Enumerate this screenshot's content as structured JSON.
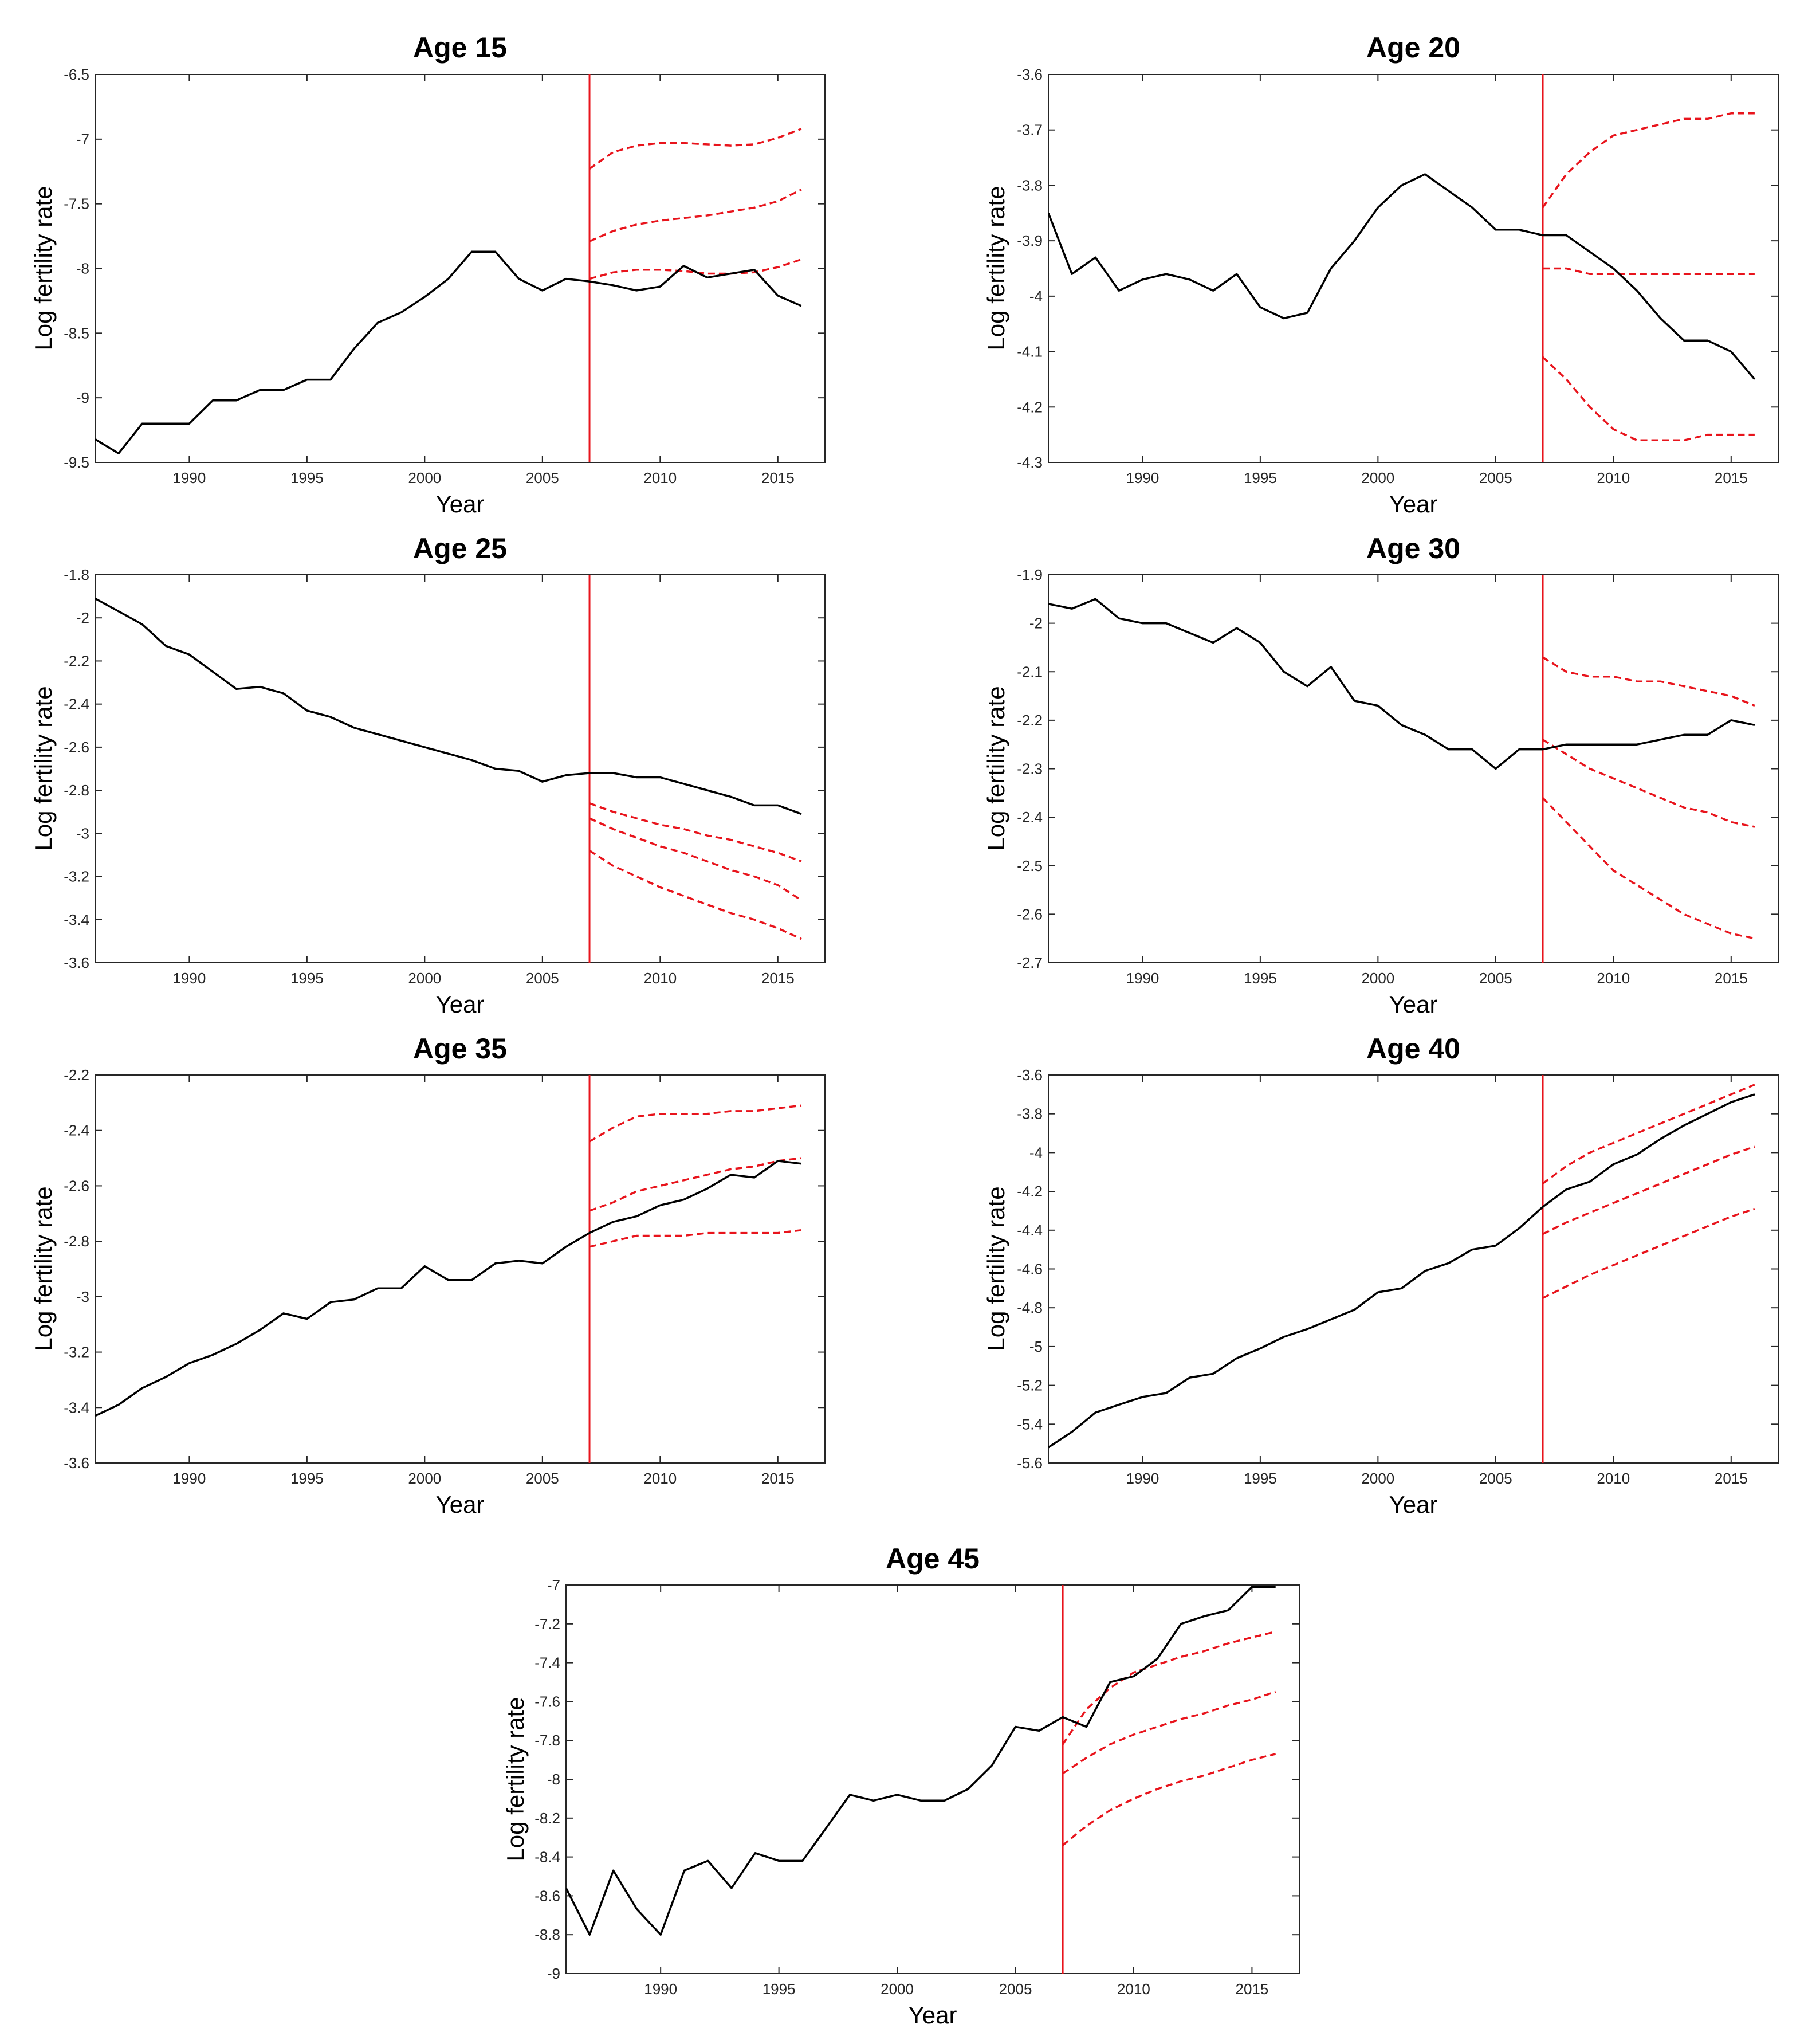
{
  "chart_data": [
    {
      "type": "line",
      "title": "Age 15",
      "xlabel": "Year",
      "ylabel": "Log fertility rate",
      "xlim": [
        1986,
        2017
      ],
      "ylim": [
        -9.5,
        -6.5
      ],
      "xticks": [
        1990,
        1995,
        2000,
        2005,
        2010,
        2015
      ],
      "yticks": [
        -9.5,
        -9,
        -8.5,
        -8,
        -7.5,
        -7,
        -6.5
      ],
      "ytick_labels": [
        "-9.5",
        "-9",
        "-8.5",
        "-8",
        "-7.5",
        "-7",
        "-6.5"
      ],
      "forecast_origin": 2007,
      "observed": {
        "x": [
          1986,
          1987,
          1988,
          1989,
          1990,
          1991,
          1992,
          1993,
          1994,
          1995,
          1996,
          1997,
          1998,
          1999,
          2000,
          2001,
          2002,
          2003,
          2004,
          2005,
          2006,
          2007,
          2008,
          2009,
          2010,
          2011,
          2012,
          2013,
          2014,
          2015,
          2016
        ],
        "y": [
          -9.32,
          -9.43,
          -9.2,
          -9.2,
          -9.2,
          -9.02,
          -9.02,
          -8.94,
          -8.94,
          -8.86,
          -8.86,
          -8.62,
          -8.42,
          -8.34,
          -8.22,
          -8.08,
          -7.87,
          -7.87,
          -8.08,
          -8.17,
          -8.08,
          -8.1,
          -8.13,
          -8.17,
          -8.14,
          -7.98,
          -8.07,
          -8.04,
          -8.01,
          -8.21,
          -8.29
        ]
      },
      "forecast": {
        "x": [
          2007,
          2008,
          2009,
          2010,
          2011,
          2012,
          2013,
          2014,
          2015,
          2016
        ],
        "upper": [
          -7.23,
          -7.1,
          -7.05,
          -7.03,
          -7.03,
          -7.04,
          -7.05,
          -7.04,
          -6.99,
          -6.92
        ],
        "mean": [
          -7.79,
          -7.71,
          -7.66,
          -7.63,
          -7.61,
          -7.59,
          -7.56,
          -7.53,
          -7.48,
          -7.39
        ],
        "lower": [
          -8.08,
          -8.03,
          -8.01,
          -8.01,
          -8.02,
          -8.04,
          -8.04,
          -8.03,
          -7.99,
          -7.93
        ]
      }
    },
    {
      "type": "line",
      "title": "Age 20",
      "xlabel": "Year",
      "ylabel": "Log fertility rate",
      "xlim": [
        1986,
        2017
      ],
      "ylim": [
        -4.3,
        -3.6
      ],
      "xticks": [
        1990,
        1995,
        2000,
        2005,
        2010,
        2015
      ],
      "yticks": [
        -4.3,
        -4.2,
        -4.1,
        -4,
        -3.9,
        -3.8,
        -3.7,
        -3.6
      ],
      "ytick_labels": [
        "-4.3",
        "-4.2",
        "-4.1",
        "-4",
        "-3.9",
        "-3.8",
        "-3.7",
        "-3.6"
      ],
      "forecast_origin": 2007,
      "observed": {
        "x": [
          1986,
          1987,
          1988,
          1989,
          1990,
          1991,
          1992,
          1993,
          1994,
          1995,
          1996,
          1997,
          1998,
          1999,
          2000,
          2001,
          2002,
          2003,
          2004,
          2005,
          2006,
          2007,
          2008,
          2009,
          2010,
          2011,
          2012,
          2013,
          2014,
          2015,
          2016
        ],
        "y": [
          -3.85,
          -3.96,
          -3.93,
          -3.99,
          -3.97,
          -3.96,
          -3.97,
          -3.99,
          -3.96,
          -4.02,
          -4.04,
          -4.03,
          -3.95,
          -3.9,
          -3.84,
          -3.8,
          -3.78,
          -3.81,
          -3.84,
          -3.88,
          -3.88,
          -3.89,
          -3.89,
          -3.92,
          -3.95,
          -3.99,
          -4.04,
          -4.08,
          -4.08,
          -4.1,
          -4.15
        ]
      },
      "forecast": {
        "x": [
          2007,
          2008,
          2009,
          2010,
          2011,
          2012,
          2013,
          2014,
          2015,
          2016
        ],
        "upper": [
          -3.84,
          -3.78,
          -3.74,
          -3.71,
          -3.7,
          -3.69,
          -3.68,
          -3.68,
          -3.67,
          -3.67
        ],
        "mean": [
          -3.95,
          -3.95,
          -3.96,
          -3.96,
          -3.96,
          -3.96,
          -3.96,
          -3.96,
          -3.96,
          -3.96
        ],
        "lower": [
          -4.11,
          -4.15,
          -4.2,
          -4.24,
          -4.26,
          -4.26,
          -4.26,
          -4.25,
          -4.25,
          -4.25
        ]
      }
    },
    {
      "type": "line",
      "title": "Age 25",
      "xlabel": "Year",
      "ylabel": "Log fertility rate",
      "xlim": [
        1986,
        2017
      ],
      "ylim": [
        -3.6,
        -1.8
      ],
      "xticks": [
        1990,
        1995,
        2000,
        2005,
        2010,
        2015
      ],
      "yticks": [
        -3.6,
        -3.4,
        -3.2,
        -3,
        -2.8,
        -2.6,
        -2.4,
        -2.2,
        -2,
        -1.8
      ],
      "ytick_labels": [
        "-3.6",
        "-3.4",
        "-3.2",
        "-3",
        "-2.8",
        "-2.6",
        "-2.4",
        "-2.2",
        "-2",
        "-1.8"
      ],
      "forecast_origin": 2007,
      "observed": {
        "x": [
          1986,
          1987,
          1988,
          1989,
          1990,
          1991,
          1992,
          1993,
          1994,
          1995,
          1996,
          1997,
          1998,
          1999,
          2000,
          2001,
          2002,
          2003,
          2004,
          2005,
          2006,
          2007,
          2008,
          2009,
          2010,
          2011,
          2012,
          2013,
          2014,
          2015,
          2016
        ],
        "y": [
          -1.91,
          -1.97,
          -2.03,
          -2.13,
          -2.17,
          -2.25,
          -2.33,
          -2.32,
          -2.35,
          -2.43,
          -2.46,
          -2.51,
          -2.54,
          -2.57,
          -2.6,
          -2.63,
          -2.66,
          -2.7,
          -2.71,
          -2.76,
          -2.73,
          -2.72,
          -2.72,
          -2.74,
          -2.74,
          -2.77,
          -2.8,
          -2.83,
          -2.87,
          -2.87,
          -2.91
        ]
      },
      "forecast": {
        "x": [
          2007,
          2008,
          2009,
          2010,
          2011,
          2012,
          2013,
          2014,
          2015,
          2016
        ],
        "upper": [
          -2.86,
          -2.9,
          -2.93,
          -2.96,
          -2.98,
          -3.01,
          -3.03,
          -3.06,
          -3.09,
          -3.13
        ],
        "mean": [
          -2.93,
          -2.98,
          -3.02,
          -3.06,
          -3.09,
          -3.13,
          -3.17,
          -3.2,
          -3.24,
          -3.31
        ],
        "lower": [
          -3.08,
          -3.15,
          -3.2,
          -3.25,
          -3.29,
          -3.33,
          -3.37,
          -3.4,
          -3.44,
          -3.49
        ]
      }
    },
    {
      "type": "line",
      "title": "Age 30",
      "xlabel": "Year",
      "ylabel": "Log fertility rate",
      "xlim": [
        1986,
        2017
      ],
      "ylim": [
        -2.7,
        -1.9
      ],
      "xticks": [
        1990,
        1995,
        2000,
        2005,
        2010,
        2015
      ],
      "yticks": [
        -2.7,
        -2.6,
        -2.5,
        -2.4,
        -2.3,
        -2.2,
        -2.1,
        -2,
        -1.9
      ],
      "ytick_labels": [
        "-2.7",
        "-2.6",
        "-2.5",
        "-2.4",
        "-2.3",
        "-2.2",
        "-2.1",
        "-2",
        "-1.9"
      ],
      "forecast_origin": 2007,
      "observed": {
        "x": [
          1986,
          1987,
          1988,
          1989,
          1990,
          1991,
          1992,
          1993,
          1994,
          1995,
          1996,
          1997,
          1998,
          1999,
          2000,
          2001,
          2002,
          2003,
          2004,
          2005,
          2006,
          2007,
          2008,
          2009,
          2010,
          2011,
          2012,
          2013,
          2014,
          2015,
          2016
        ],
        "y": [
          -1.96,
          -1.97,
          -1.95,
          -1.99,
          -2.0,
          -2.0,
          -2.02,
          -2.04,
          -2.01,
          -2.04,
          -2.1,
          -2.13,
          -2.09,
          -2.16,
          -2.17,
          -2.21,
          -2.23,
          -2.26,
          -2.26,
          -2.3,
          -2.26,
          -2.26,
          -2.25,
          -2.25,
          -2.25,
          -2.25,
          -2.24,
          -2.23,
          -2.23,
          -2.2,
          -2.21
        ]
      },
      "forecast": {
        "x": [
          2007,
          2008,
          2009,
          2010,
          2011,
          2012,
          2013,
          2014,
          2015,
          2016
        ],
        "upper": [
          -2.07,
          -2.1,
          -2.11,
          -2.11,
          -2.12,
          -2.12,
          -2.13,
          -2.14,
          -2.15,
          -2.17
        ],
        "mean": [
          -2.24,
          -2.27,
          -2.3,
          -2.32,
          -2.34,
          -2.36,
          -2.38,
          -2.39,
          -2.41,
          -2.42
        ],
        "lower": [
          -2.36,
          -2.41,
          -2.46,
          -2.51,
          -2.54,
          -2.57,
          -2.6,
          -2.62,
          -2.64,
          -2.65
        ]
      }
    },
    {
      "type": "line",
      "title": "Age 35",
      "xlabel": "Year",
      "ylabel": "Log fertility rate",
      "xlim": [
        1986,
        2017
      ],
      "ylim": [
        -3.6,
        -2.2
      ],
      "xticks": [
        1990,
        1995,
        2000,
        2005,
        2010,
        2015
      ],
      "yticks": [
        -3.6,
        -3.4,
        -3.2,
        -3,
        -2.8,
        -2.6,
        -2.4,
        -2.2
      ],
      "ytick_labels": [
        "-3.6",
        "-3.4",
        "-3.2",
        "-3",
        "-2.8",
        "-2.6",
        "-2.4",
        "-2.2"
      ],
      "forecast_origin": 2007,
      "observed": {
        "x": [
          1986,
          1987,
          1988,
          1989,
          1990,
          1991,
          1992,
          1993,
          1994,
          1995,
          1996,
          1997,
          1998,
          1999,
          2000,
          2001,
          2002,
          2003,
          2004,
          2005,
          2006,
          2007,
          2008,
          2009,
          2010,
          2011,
          2012,
          2013,
          2014,
          2015,
          2016
        ],
        "y": [
          -3.43,
          -3.39,
          -3.33,
          -3.29,
          -3.24,
          -3.21,
          -3.17,
          -3.12,
          -3.06,
          -3.08,
          -3.02,
          -3.01,
          -2.97,
          -2.97,
          -2.89,
          -2.94,
          -2.94,
          -2.88,
          -2.87,
          -2.88,
          -2.82,
          -2.77,
          -2.73,
          -2.71,
          -2.67,
          -2.65,
          -2.61,
          -2.56,
          -2.57,
          -2.51,
          -2.52
        ]
      },
      "forecast": {
        "x": [
          2007,
          2008,
          2009,
          2010,
          2011,
          2012,
          2013,
          2014,
          2015,
          2016
        ],
        "upper": [
          -2.44,
          -2.39,
          -2.35,
          -2.34,
          -2.34,
          -2.34,
          -2.33,
          -2.33,
          -2.32,
          -2.31
        ],
        "mean": [
          -2.69,
          -2.66,
          -2.62,
          -2.6,
          -2.58,
          -2.56,
          -2.54,
          -2.53,
          -2.51,
          -2.5
        ],
        "lower": [
          -2.82,
          -2.8,
          -2.78,
          -2.78,
          -2.78,
          -2.77,
          -2.77,
          -2.77,
          -2.77,
          -2.76
        ]
      }
    },
    {
      "type": "line",
      "title": "Age 40",
      "xlabel": "Year",
      "ylabel": "Log fertility rate",
      "xlim": [
        1986,
        2017
      ],
      "ylim": [
        -5.6,
        -3.6
      ],
      "xticks": [
        1990,
        1995,
        2000,
        2005,
        2010,
        2015
      ],
      "yticks": [
        -5.6,
        -5.4,
        -5.2,
        -5,
        -4.8,
        -4.6,
        -4.4,
        -4.2,
        -4,
        -3.8,
        -3.6
      ],
      "ytick_labels": [
        "-5.6",
        "-5.4",
        "-5.2",
        "-5",
        "-4.8",
        "-4.6",
        "-4.4",
        "-4.2",
        "-4",
        "-3.8",
        "-3.6"
      ],
      "forecast_origin": 2007,
      "observed": {
        "x": [
          1986,
          1987,
          1988,
          1989,
          1990,
          1991,
          1992,
          1993,
          1994,
          1995,
          1996,
          1997,
          1998,
          1999,
          2000,
          2001,
          2002,
          2003,
          2004,
          2005,
          2006,
          2007,
          2008,
          2009,
          2010,
          2011,
          2012,
          2013,
          2014,
          2015,
          2016
        ],
        "y": [
          -5.52,
          -5.44,
          -5.34,
          -5.3,
          -5.26,
          -5.24,
          -5.16,
          -5.14,
          -5.06,
          -5.01,
          -4.95,
          -4.91,
          -4.86,
          -4.81,
          -4.72,
          -4.7,
          -4.61,
          -4.57,
          -4.5,
          -4.48,
          -4.39,
          -4.28,
          -4.19,
          -4.15,
          -4.06,
          -4.01,
          -3.93,
          -3.86,
          -3.8,
          -3.74,
          -3.7
        ]
      },
      "forecast": {
        "x": [
          2007,
          2008,
          2009,
          2010,
          2011,
          2012,
          2013,
          2014,
          2015,
          2016
        ],
        "upper": [
          -4.16,
          -4.07,
          -4.0,
          -3.95,
          -3.9,
          -3.85,
          -3.8,
          -3.75,
          -3.7,
          -3.65
        ],
        "mean": [
          -4.42,
          -4.36,
          -4.31,
          -4.26,
          -4.21,
          -4.16,
          -4.11,
          -4.06,
          -4.01,
          -3.97
        ],
        "lower": [
          -4.75,
          -4.69,
          -4.63,
          -4.58,
          -4.53,
          -4.48,
          -4.43,
          -4.38,
          -4.33,
          -4.29
        ]
      }
    },
    {
      "type": "line",
      "title": "Age 45",
      "xlabel": "Year",
      "ylabel": "Log fertility rate",
      "xlim": [
        1986,
        2017
      ],
      "ylim": [
        -9,
        -7
      ],
      "xticks": [
        1990,
        1995,
        2000,
        2005,
        2010,
        2015
      ],
      "yticks": [
        -9,
        -8.8,
        -8.6,
        -8.4,
        -8.2,
        -8,
        -7.8,
        -7.6,
        -7.4,
        -7.2,
        -7
      ],
      "ytick_labels": [
        "-9",
        "-8.8",
        "-8.6",
        "-8.4",
        "-8.2",
        "-8",
        "-7.8",
        "-7.6",
        "-7.4",
        "-7.2",
        "-7"
      ],
      "forecast_origin": 2007,
      "observed": {
        "x": [
          1986,
          1987,
          1988,
          1989,
          1990,
          1991,
          1992,
          1993,
          1994,
          1995,
          1996,
          1997,
          1998,
          1999,
          2000,
          2001,
          2002,
          2003,
          2004,
          2005,
          2006,
          2007,
          2008,
          2009,
          2010,
          2011,
          2012,
          2013,
          2014,
          2015,
          2016
        ],
        "y": [
          -8.56,
          -8.8,
          -8.47,
          -8.67,
          -8.8,
          -8.47,
          -8.42,
          -8.56,
          -8.38,
          -8.42,
          -8.42,
          -8.25,
          -8.08,
          -8.11,
          -8.08,
          -8.11,
          -8.11,
          -8.05,
          -7.93,
          -7.73,
          -7.75,
          -7.68,
          -7.73,
          -7.5,
          -7.47,
          -7.38,
          -7.2,
          -7.16,
          -7.13,
          -7.01,
          -7.01
        ]
      },
      "forecast": {
        "x": [
          2007,
          2008,
          2009,
          2010,
          2011,
          2012,
          2013,
          2014,
          2015,
          2016
        ],
        "upper": [
          -7.82,
          -7.64,
          -7.53,
          -7.45,
          -7.41,
          -7.37,
          -7.34,
          -7.3,
          -7.27,
          -7.24
        ],
        "mean": [
          -7.97,
          -7.89,
          -7.82,
          -7.77,
          -7.73,
          -7.69,
          -7.66,
          -7.62,
          -7.59,
          -7.55
        ],
        "lower": [
          -8.34,
          -8.24,
          -8.16,
          -8.1,
          -8.05,
          -8.01,
          -7.98,
          -7.94,
          -7.9,
          -7.87
        ]
      }
    }
  ],
  "colors": {
    "observed": "#000000",
    "forecast": "#e8141c",
    "origin_line": "#e8141c",
    "axes": "#262626"
  }
}
